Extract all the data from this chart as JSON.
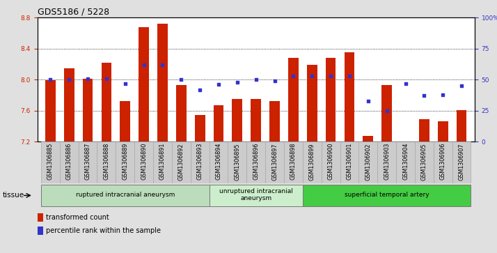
{
  "title": "GDS5186 / 5228",
  "samples": [
    "GSM1306885",
    "GSM1306886",
    "GSM1306887",
    "GSM1306888",
    "GSM1306889",
    "GSM1306890",
    "GSM1306891",
    "GSM1306892",
    "GSM1306893",
    "GSM1306894",
    "GSM1306895",
    "GSM1306896",
    "GSM1306897",
    "GSM1306898",
    "GSM1306899",
    "GSM1306900",
    "GSM1306901",
    "GSM1306902",
    "GSM1306903",
    "GSM1306904",
    "GSM1306905",
    "GSM1306906",
    "GSM1306907"
  ],
  "bar_values": [
    7.99,
    8.15,
    8.01,
    8.22,
    7.72,
    8.68,
    8.72,
    7.93,
    7.54,
    7.67,
    7.75,
    7.75,
    7.72,
    8.28,
    8.19,
    8.28,
    8.35,
    7.27,
    7.93,
    7.18,
    7.49,
    7.46,
    7.61
  ],
  "percentile_values": [
    50,
    50,
    51,
    51,
    47,
    62,
    62,
    50,
    42,
    46,
    48,
    50,
    49,
    53,
    53,
    53,
    53,
    33,
    25,
    47,
    37,
    38,
    45
  ],
  "ylim_left": [
    7.2,
    8.8
  ],
  "ylim_right": [
    0,
    100
  ],
  "yticks_left": [
    7.2,
    7.6,
    8.0,
    8.4,
    8.8
  ],
  "yticks_right": [
    0,
    25,
    50,
    75,
    100
  ],
  "ytick_labels_right": [
    "0",
    "25",
    "50",
    "75",
    "100%"
  ],
  "bar_color": "#cc2200",
  "dot_color": "#3333cc",
  "groups": [
    {
      "label": "ruptured intracranial aneurysm",
      "start": 0,
      "end": 9,
      "color": "#bbddbb"
    },
    {
      "label": "unruptured intracranial\naneurysm",
      "start": 9,
      "end": 14,
      "color": "#cceecc"
    },
    {
      "label": "superficial temporal artery",
      "start": 14,
      "end": 23,
      "color": "#44cc44"
    }
  ],
  "tissue_label": "tissue",
  "legend_bar_label": "transformed count",
  "legend_dot_label": "percentile rank within the sample",
  "background_color": "#e0e0e0",
  "plot_bg_color": "#ffffff",
  "title_fontsize": 9,
  "tick_fontsize": 6.5,
  "bar_width": 0.55,
  "label_bg_color": "#cccccc",
  "label_border_color": "#aaaaaa"
}
